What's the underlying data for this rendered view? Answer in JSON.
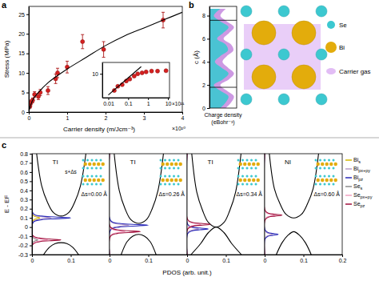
{
  "panel_labels": [
    "a",
    "b",
    "c"
  ],
  "structure_legend": [
    {
      "label": "Se",
      "color": "#3cc8d0"
    },
    {
      "label": "Bi",
      "color": "#e3ac0c"
    },
    {
      "label": "Carrier gas",
      "color": "#e2bdf5"
    }
  ],
  "chart_data": [
    {
      "type": "scatter",
      "x_label": "Carrier density (m/Jcm⁻³)",
      "y_label": "Stress (MPa)",
      "x_multiplier": "×10²⁰",
      "xlim": [
        0,
        4
      ],
      "ylim": [
        0,
        27
      ],
      "xticks": [
        0,
        1,
        2,
        3,
        4
      ],
      "yticks": [
        0,
        5,
        10,
        15,
        20,
        25
      ],
      "series": [
        {
          "type": "scatter",
          "color": "#d62020",
          "marker": "circle",
          "x": [
            0.03,
            0.06,
            0.1,
            0.15,
            0.25,
            0.3,
            0.5,
            0.7,
            0.75,
            1.0,
            1.4,
            1.95,
            3.5
          ],
          "values": [
            1.5,
            2.5,
            3,
            4.5,
            4,
            5,
            5.5,
            8.5,
            10,
            11.5,
            18,
            16,
            23.5
          ],
          "errors": [
            0.5,
            0.6,
            0.6,
            0.7,
            0.8,
            0.8,
            1,
            1.2,
            1.2,
            1.5,
            1.8,
            2,
            2
          ]
        },
        {
          "type": "line",
          "color": "#000000",
          "x": [
            0,
            0.1,
            0.25,
            0.5,
            1,
            1.5,
            2,
            2.5,
            3,
            3.5,
            4
          ],
          "values": [
            0,
            3,
            5,
            7.5,
            11,
            14,
            17,
            19.5,
            21.5,
            23.5,
            25.5
          ]
        }
      ]
    },
    {
      "type": "scatter",
      "log": true,
      "x_multiplier": "×10²¹",
      "xlim": [
        0.005,
        12
      ],
      "ylim": [
        1,
        30
      ],
      "xticks": [
        0.01,
        0.1,
        1,
        10
      ],
      "yticks": [
        10
      ],
      "series": [
        {
          "type": "scatter",
          "color": "#d62020",
          "marker": "circle",
          "x": [
            0.02,
            0.03,
            0.05,
            0.08,
            0.12,
            0.2,
            0.3,
            0.5,
            0.8,
            1.5,
            3,
            8
          ],
          "values": [
            2,
            3,
            3.5,
            5,
            6,
            8,
            10,
            11,
            12,
            13,
            13,
            13.5
          ]
        },
        {
          "type": "line",
          "color": "#000000",
          "x": [
            0.01,
            0.45
          ],
          "values": [
            1.3,
            20
          ]
        }
      ]
    },
    {
      "type": "area",
      "x_label": [
        "Charge density",
        "(eBohr⁻³)"
      ],
      "y_label": "c (Å)",
      "tick_labels": "y",
      "xlim": [
        0,
        0.05
      ],
      "ylim": [
        0,
        8.8
      ],
      "yticks": [
        0,
        2,
        4,
        6,
        8
      ],
      "reference_lines": [
        1.8,
        7.6
      ],
      "series": [
        {
          "color": "#c88ee0",
          "x": [
            0.03,
            0.04,
            0.045,
            0.032,
            0.02,
            0.036,
            0.045,
            0.034,
            0.024,
            0.032,
            0.044,
            0.04,
            0.026,
            0.036,
            0.045,
            0.032,
            0.02,
            0.03
          ],
          "values": [
            0,
            0.5,
            1,
            1.5,
            2,
            2.5,
            3,
            3.5,
            4,
            4.5,
            5,
            5.5,
            6,
            6.5,
            7,
            7.5,
            8,
            8.6
          ]
        },
        {
          "color": "#3cc8d0",
          "x": [
            0.02,
            0.03,
            0.035,
            0.02,
            0.008,
            0.025,
            0.035,
            0.022,
            0.01,
            0.02,
            0.034,
            0.03,
            0.014,
            0.025,
            0.035,
            0.02,
            0.008,
            0.02
          ],
          "values": [
            0,
            0.5,
            1,
            1.5,
            2,
            2.5,
            3,
            3.5,
            4,
            4.5,
            5,
            5.5,
            6,
            6.5,
            7,
            7.5,
            8,
            8.6
          ]
        }
      ]
    },
    {
      "type": "line",
      "title": "TI",
      "annotations": [
        "Δs=0.00 Å",
        "s+Δs"
      ],
      "y_label": "E - EF",
      "x_label": "PDOS (arb. unit.)",
      "legend": "right",
      "xlim": [
        0,
        0.2
      ],
      "ylim": [
        -0.3,
        0.8
      ],
      "xticks": [
        0,
        0.1
      ],
      "yticks": [
        -0.3,
        -0.2,
        -0.1,
        0,
        0.1,
        0.2,
        0.3,
        0.4,
        0.5,
        0.6,
        0.7,
        0.8
      ],
      "series": [
        {
          "color": "#000000",
          "x": [
            0.012,
            0.025,
            0.04,
            0.055,
            0.075,
            0.095,
            0.11,
            0.125,
            0.139
          ],
          "values": [
            0.8,
            0.45,
            0.27,
            0.16,
            0.12,
            0.16,
            0.27,
            0.45,
            0.8
          ]
        },
        {
          "color": "#000000",
          "x": [
            0.03,
            0.045,
            0.06,
            0.075,
            0.09,
            0.105,
            0.12
          ],
          "values": [
            -0.3,
            -0.22,
            -0.18,
            -0.17,
            -0.18,
            -0.22,
            -0.3
          ]
        },
        {
          "name": "Bis",
          "color": "#d4b800",
          "x": [
            0,
            0.0006,
            0.005,
            0.012,
            0.02,
            0.012,
            0.005,
            0.0006,
            0
          ],
          "values": [
            -0.3,
            0.05,
            0.08,
            0.09,
            0.1,
            0.11,
            0.12,
            0.15,
            0.8
          ]
        },
        {
          "name": "Bipx+py",
          "color": "#b89cc8",
          "x": [
            0,
            0.0015,
            0.0125,
            0.03,
            0.05,
            0.03,
            0.0125,
            0.0015,
            0
          ],
          "values": [
            -0.3,
            0.05,
            0.08,
            0.09,
            0.1,
            0.11,
            0.12,
            0.15,
            0.8
          ]
        },
        {
          "name": "Bipz",
          "color": "#2b2bb8",
          "x": [
            0,
            0.003,
            0.025,
            0.06,
            0.1,
            0.06,
            0.025,
            0.003,
            0
          ],
          "values": [
            -0.3,
            0.05,
            0.08,
            0.09,
            0.1,
            0.11,
            0.12,
            0.15,
            0.8
          ]
        },
        {
          "name": "Ses",
          "color": "#8c8c8c",
          "x": [
            0,
            0.0005,
            0.004,
            0.009,
            0.015,
            0.009,
            0.004,
            0.0005,
            0
          ],
          "values": [
            -0.3,
            -0.19,
            -0.16,
            -0.15,
            -0.14,
            -0.13,
            -0.12,
            -0.09,
            0.8
          ]
        },
        {
          "name": "Sepx+py",
          "color": "#f0a0c0",
          "x": [
            0,
            0.001,
            0.01,
            0.024,
            0.04,
            0.024,
            0.01,
            0.001,
            0
          ],
          "values": [
            -0.3,
            -0.19,
            -0.16,
            -0.15,
            -0.14,
            -0.13,
            -0.12,
            -0.09,
            0.8
          ]
        },
        {
          "name": "Sepz",
          "color": "#a0103c",
          "x": [
            0,
            0.002,
            0.019,
            0.045,
            0.075,
            0.045,
            0.019,
            0.002,
            0
          ],
          "values": [
            -0.3,
            -0.19,
            -0.16,
            -0.15,
            -0.14,
            -0.13,
            -0.12,
            -0.09,
            0.8
          ]
        }
      ]
    },
    {
      "type": "line",
      "title": "TI",
      "annotations": [
        "Δs=0.26 Å"
      ],
      "tick_labels": "x",
      "xlim": [
        0,
        0.2
      ],
      "ylim": [
        -0.3,
        0.8
      ],
      "xticks": [
        0,
        0.1
      ],
      "series": [
        {
          "color": "#000000",
          "x": [
            0.012,
            0.025,
            0.04,
            0.055,
            0.075,
            0.095,
            0.11,
            0.125,
            0.139
          ],
          "values": [
            0.8,
            0.4,
            0.2,
            0.08,
            0.04,
            0.08,
            0.2,
            0.4,
            0.8
          ]
        },
        {
          "color": "#000000",
          "x": [
            0.03,
            0.045,
            0.06,
            0.075,
            0.09,
            0.105,
            0.12
          ],
          "values": [
            -0.3,
            -0.16,
            -0.1,
            -0.08,
            -0.1,
            -0.16,
            -0.3
          ]
        },
        {
          "color": "#b89cc8",
          "x": [
            0,
            0.0015,
            0.0125,
            0.03,
            0.05,
            0.03,
            0.0125,
            0.0015,
            0
          ],
          "values": [
            -0.3,
            -0.03,
            0,
            0.01,
            0.02,
            0.03,
            0.04,
            0.07,
            0.8
          ]
        },
        {
          "color": "#2b2bb8",
          "x": [
            0,
            0.003,
            0.025,
            0.06,
            0.1,
            0.06,
            0.025,
            0.003,
            0
          ],
          "values": [
            -0.3,
            -0.03,
            0,
            0.01,
            0.02,
            0.03,
            0.04,
            0.07,
            0.8
          ]
        },
        {
          "color": "#f0a0c0",
          "x": [
            0,
            0.001,
            0.01,
            0.024,
            0.04,
            0.024,
            0.01,
            0.001,
            0
          ],
          "values": [
            -0.3,
            -0.1,
            -0.07,
            -0.06,
            -0.05,
            -0.04,
            -0.03,
            0,
            0.8
          ]
        },
        {
          "color": "#a0103c",
          "x": [
            0,
            0.0024,
            0.02,
            0.048,
            0.08,
            0.048,
            0.02,
            0.0024,
            0
          ],
          "values": [
            -0.3,
            -0.1,
            -0.07,
            -0.06,
            -0.05,
            -0.04,
            -0.03,
            0,
            0.8
          ]
        }
      ]
    },
    {
      "type": "line",
      "title": "TI",
      "annotations": [
        "Δs=0.34 Å"
      ],
      "tick_labels": "x",
      "xlim": [
        0,
        0.2
      ],
      "ylim": [
        -0.3,
        0.8
      ],
      "xticks": [
        0,
        0.1
      ],
      "series": [
        {
          "color": "#000000",
          "x": [
            0.012,
            0.025,
            0.04,
            0.055,
            0.075,
            0.095,
            0.11,
            0.125,
            0.139
          ],
          "values": [
            0.8,
            0.38,
            0.18,
            0.05,
            0,
            0.05,
            0.18,
            0.38,
            0.8
          ]
        },
        {
          "color": "#000000",
          "x": [
            0.01,
            0.035,
            0.055,
            0.075,
            0.095,
            0.115,
            0.14
          ],
          "values": [
            -0.3,
            -0.18,
            -0.06,
            0,
            -0.06,
            -0.18,
            -0.3
          ]
        },
        {
          "color": "#b89cc8",
          "x": [
            0,
            0.0009,
            0.0075,
            0.018,
            0.03,
            0.018,
            0.0075,
            0.0009,
            0
          ],
          "values": [
            -0.3,
            -0.07,
            -0.04,
            -0.03,
            -0.02,
            -0.01,
            0,
            0.03,
            0.8
          ]
        },
        {
          "color": "#2b2bb8",
          "x": [
            0,
            0.0017,
            0.014,
            0.033,
            0.055,
            0.033,
            0.014,
            0.0017,
            0
          ],
          "values": [
            -0.3,
            -0.07,
            -0.04,
            -0.03,
            -0.02,
            -0.01,
            0,
            0.03,
            0.8
          ]
        },
        {
          "color": "#f0a0c0",
          "x": [
            0,
            0.001,
            0.009,
            0.021,
            0.035,
            0.021,
            0.009,
            0.001,
            0
          ],
          "values": [
            -0.3,
            -0.02,
            0.01,
            0.02,
            0.03,
            0.04,
            0.05,
            0.08,
            0.8
          ]
        },
        {
          "color": "#a0103c",
          "x": [
            0,
            0.0018,
            0.015,
            0.036,
            0.06,
            0.036,
            0.015,
            0.0018,
            0
          ],
          "values": [
            -0.3,
            -0.02,
            0.01,
            0.02,
            0.03,
            0.04,
            0.05,
            0.08,
            0.8
          ]
        }
      ]
    },
    {
      "type": "line",
      "title": "NI",
      "annotations": [
        "Δs=0.60 Å"
      ],
      "tick_labels": "x",
      "xlim": [
        0,
        0.2
      ],
      "ylim": [
        -0.3,
        0.8
      ],
      "xticks": [
        0,
        0.1,
        0.2
      ],
      "series": [
        {
          "color": "#000000",
          "x": [
            0.012,
            0.025,
            0.04,
            0.055,
            0.075,
            0.095,
            0.11,
            0.125,
            0.139
          ],
          "values": [
            0.8,
            0.42,
            0.25,
            0.14,
            0.1,
            0.14,
            0.25,
            0.42,
            0.8
          ]
        },
        {
          "color": "#000000",
          "x": [
            0.03,
            0.045,
            0.06,
            0.075,
            0.09,
            0.105,
            0.12
          ],
          "values": [
            -0.3,
            -0.17,
            -0.09,
            -0.05,
            -0.09,
            -0.17,
            -0.3
          ]
        },
        {
          "color": "#b89cc8",
          "x": [
            0,
            0.0006,
            0.005,
            0.012,
            0.02,
            0.012,
            0.005,
            0.0006,
            0
          ],
          "values": [
            -0.3,
            -0.13,
            -0.1,
            -0.09,
            -0.08,
            -0.07,
            -0.06,
            -0.03,
            0.8
          ]
        },
        {
          "color": "#2b2bb8",
          "x": [
            0,
            0.001,
            0.009,
            0.021,
            0.035,
            0.021,
            0.009,
            0.001,
            0
          ],
          "values": [
            -0.3,
            -0.13,
            -0.1,
            -0.09,
            -0.08,
            -0.07,
            -0.06,
            -0.03,
            0.8
          ]
        },
        {
          "color": "#f0a0c0",
          "x": [
            0,
            0.0008,
            0.006,
            0.015,
            0.025,
            0.015,
            0.006,
            0.0008,
            0
          ],
          "values": [
            -0.3,
            0.08,
            0.11,
            0.12,
            0.13,
            0.14,
            0.15,
            0.18,
            0.8
          ]
        },
        {
          "color": "#a0103c",
          "x": [
            0,
            0.0014,
            0.011,
            0.027,
            0.045,
            0.027,
            0.011,
            0.0014,
            0
          ],
          "values": [
            -0.3,
            0.08,
            0.11,
            0.12,
            0.13,
            0.14,
            0.15,
            0.18,
            0.8
          ]
        }
      ]
    }
  ]
}
